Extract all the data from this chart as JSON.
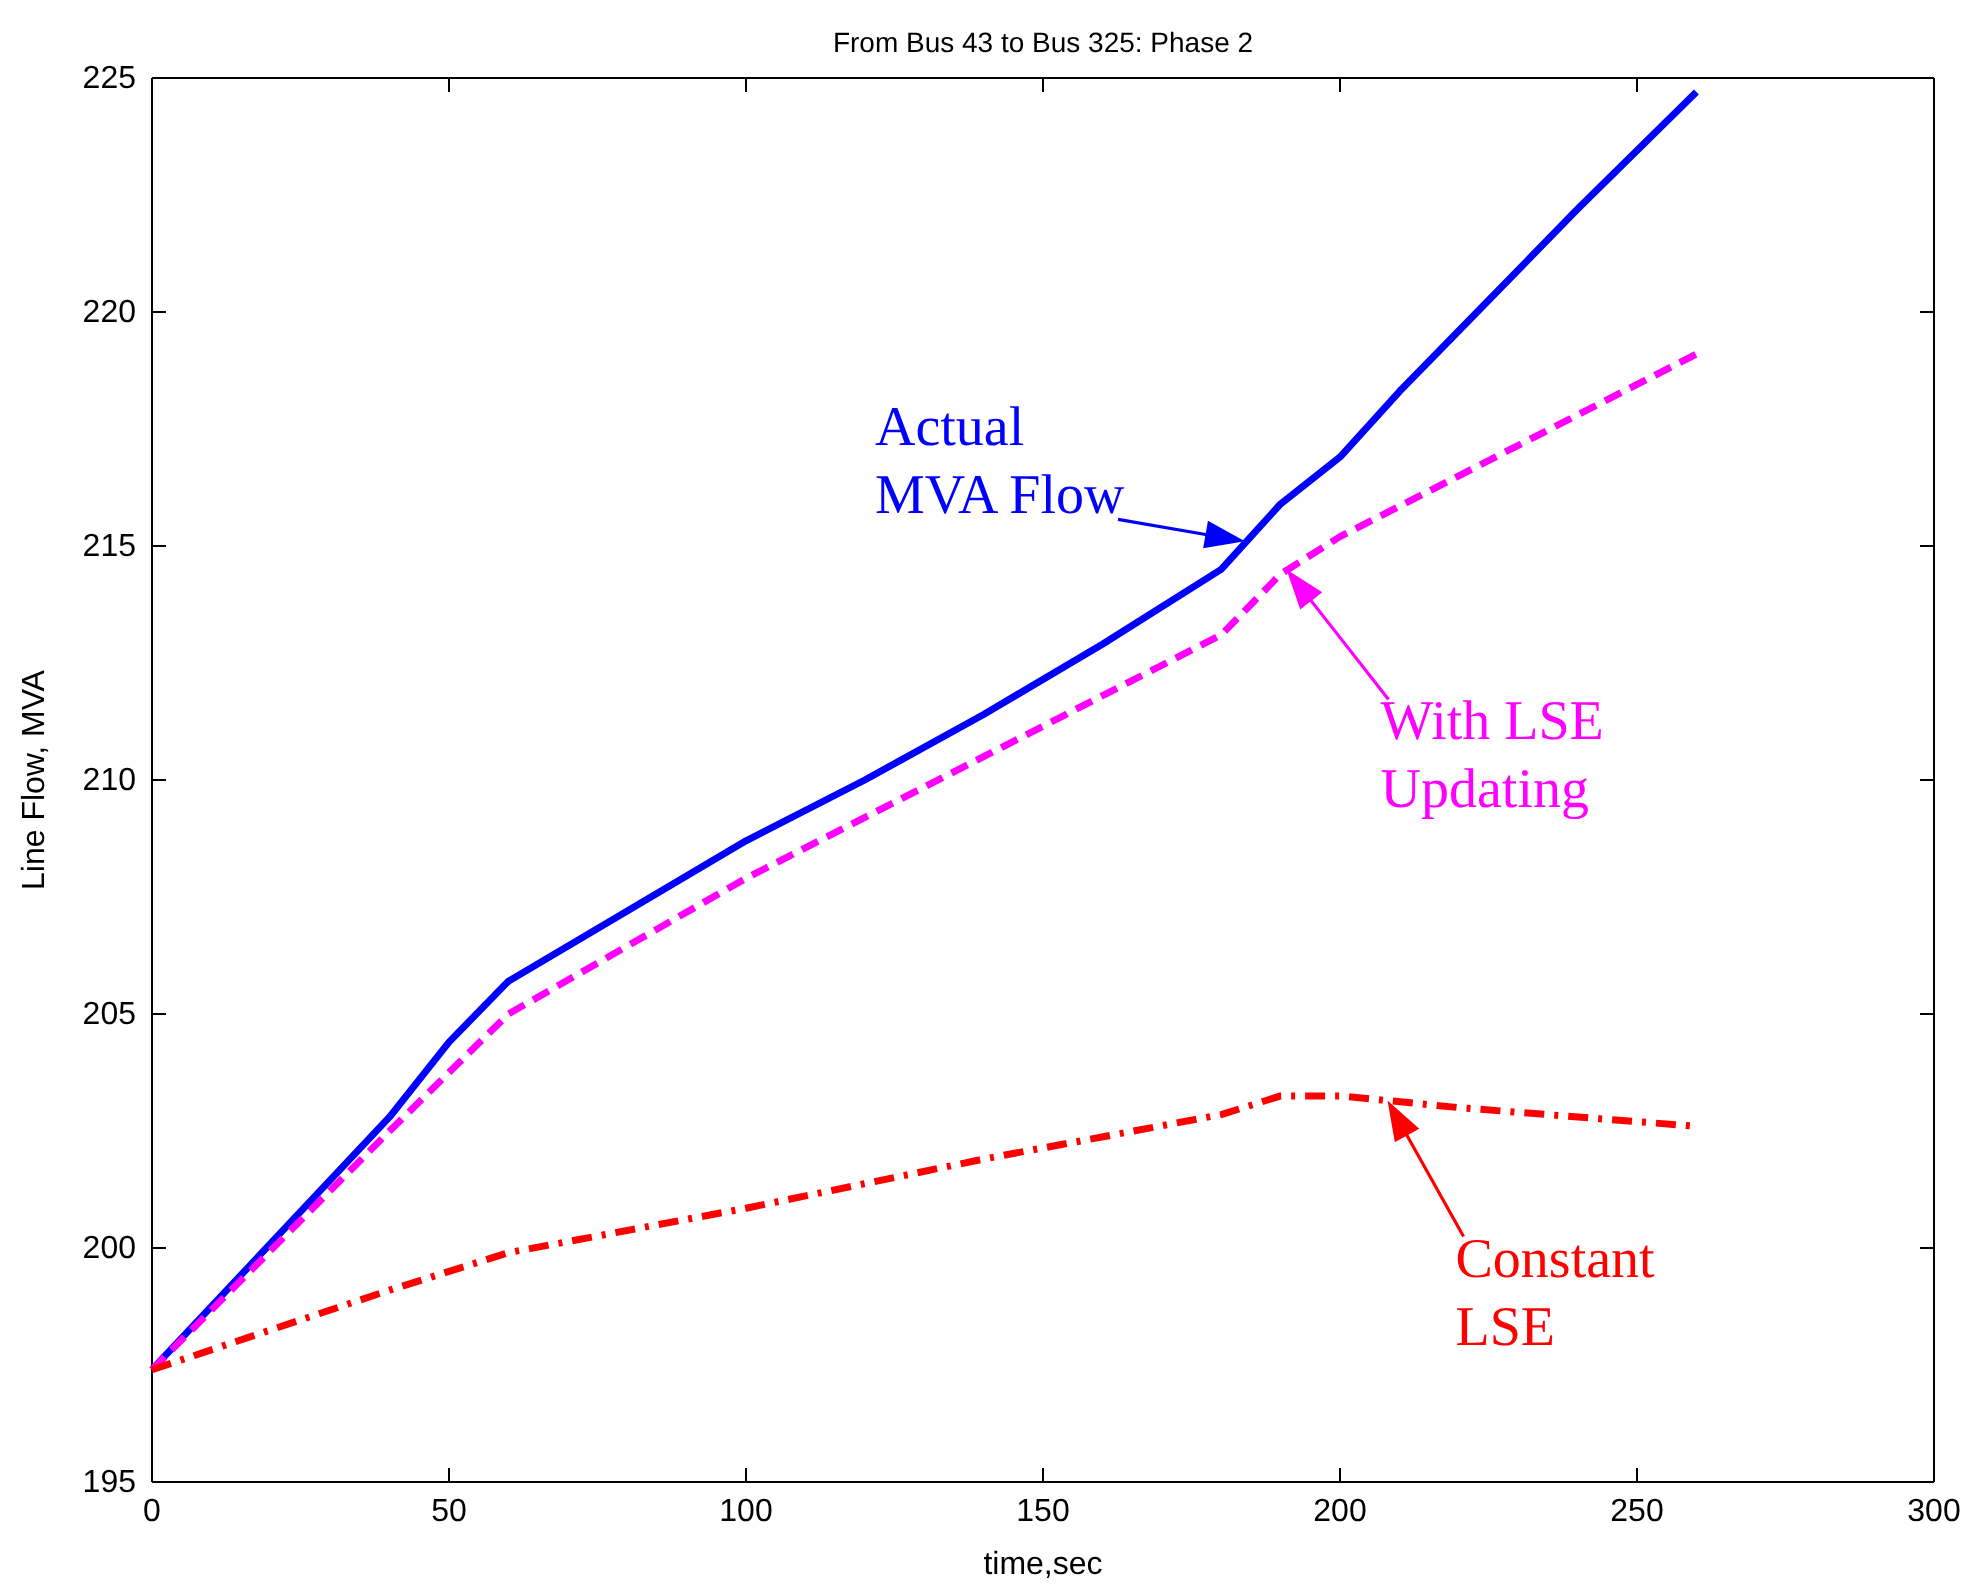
{
  "chart_data": {
    "type": "line",
    "title": "From Bus 43 to Bus 325: Phase 2",
    "xlabel": "time,sec",
    "ylabel": "Line Flow, MVA",
    "xlim": [
      0,
      300
    ],
    "xticks": [
      0,
      50,
      100,
      150,
      200,
      250,
      300
    ],
    "ylim": [
      195,
      225
    ],
    "yticks": [
      195,
      200,
      205,
      210,
      215,
      220,
      225
    ],
    "series": [
      {
        "color": "#0000ff",
        "line_style": "solid",
        "x": [
          0,
          40,
          50,
          60,
          100,
          120,
          140,
          160,
          180,
          190,
          200,
          210,
          220,
          240,
          260
        ],
        "values": [
          197.4,
          202.8,
          204.4,
          205.7,
          208.7,
          210.0,
          211.4,
          212.9,
          214.5,
          215.9,
          216.9,
          218.3,
          219.6,
          222.2,
          224.7
        ]
      },
      {
        "color": "#ff00ff",
        "line_style": "dashed",
        "x": [
          0,
          40,
          60,
          100,
          140,
          180,
          190,
          200,
          260
        ],
        "values": [
          197.4,
          202.5,
          205.0,
          207.9,
          210.5,
          213.1,
          214.4,
          215.2,
          219.1
        ]
      },
      {
        "color": "#ff0000",
        "line_style": "dashdot",
        "x": [
          0,
          40,
          60,
          100,
          140,
          180,
          190,
          200,
          220,
          260
        ],
        "values": [
          197.4,
          199.1,
          199.9,
          200.85,
          201.9,
          202.85,
          203.25,
          203.25,
          203.0,
          202.6
        ]
      }
    ],
    "annotations": [
      {
        "text": "Actual\nMVA Flow",
        "x": 184,
        "y": 215.1
      },
      {
        "text": "With LSE\nUpdating",
        "x": 191,
        "y": 214.5
      },
      {
        "text": "Constant\nLSE",
        "x": 208,
        "y": 203.15
      }
    ],
    "grid": false
  }
}
